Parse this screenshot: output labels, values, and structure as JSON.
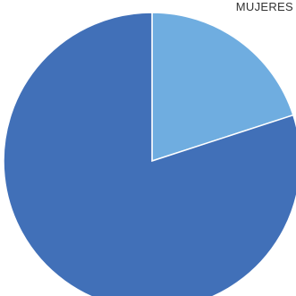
{
  "chart_data": {
    "type": "pie",
    "labels": [
      "MUJERES",
      ""
    ],
    "values": [
      20,
      80
    ],
    "colors": [
      "#6fade0",
      "#4170b8"
    ],
    "start_angle_deg": 0,
    "direction": "clockwise",
    "legend": "none"
  }
}
